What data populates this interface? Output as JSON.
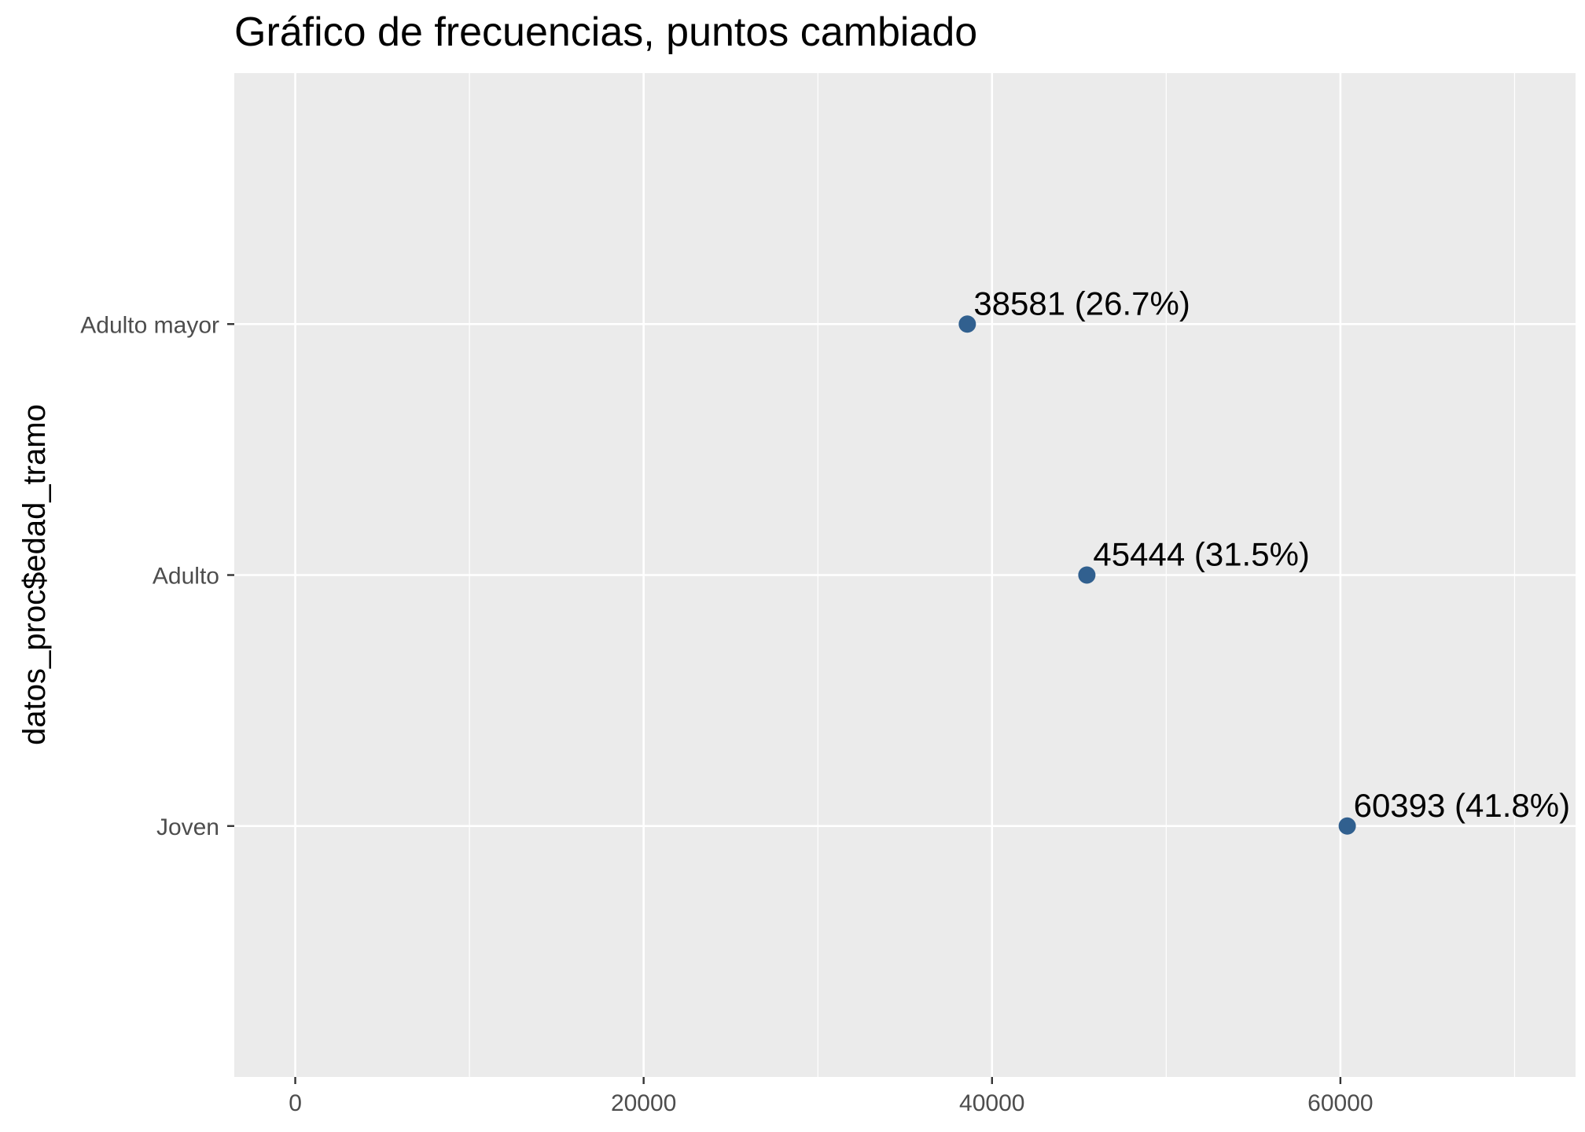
{
  "chart_data": {
    "type": "scatter",
    "title": "Gráfico de frecuencias, puntos cambiado",
    "xlabel": "",
    "ylabel": "datos_proc$edad_tramo",
    "categories": [
      "Joven",
      "Adulto",
      "Adulto mayor"
    ],
    "values": [
      60393,
      45444,
      38581
    ],
    "data_labels": [
      "60393 (41.8%)",
      "45444 (31.5%)",
      "38581 (26.7%)"
    ],
    "xlim": [
      -3500,
      73500
    ],
    "x_ticks": [
      0,
      20000,
      40000,
      60000
    ],
    "x_tick_labels": [
      "0",
      "20000",
      "40000",
      "60000"
    ],
    "x_minor_ticks": [
      10000,
      30000,
      50000,
      70000
    ],
    "grid": true,
    "legend": "none",
    "colors": {
      "panel_background": "#EBEBEB",
      "grid": "#FFFFFF",
      "point": "#31608F",
      "tick_text": "#4D4D4D",
      "axis_tick": "#333333"
    }
  }
}
